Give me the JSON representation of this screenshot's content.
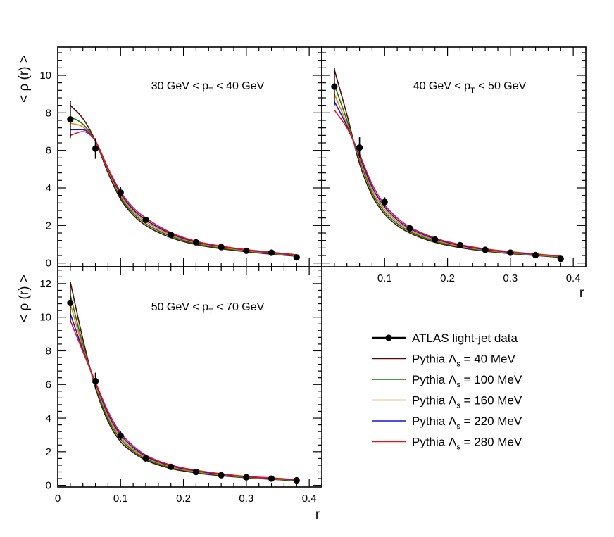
{
  "chart_data": [
    {
      "type": "line",
      "panel": "top-left",
      "title_parts": [
        "30 GeV < p",
        "T",
        " < 40 GeV"
      ],
      "ylabel": "< ρ (r) >",
      "xlabel": "",
      "xlim": [
        0,
        0.42
      ],
      "ylim": [
        -0.2,
        11.5
      ],
      "xticks": [],
      "yticks": [
        0,
        2,
        4,
        6,
        8,
        10
      ],
      "data": {
        "name": "ATLAS light-jet data",
        "x": [
          0.02,
          0.06,
          0.1,
          0.14,
          0.18,
          0.22,
          0.26,
          0.3,
          0.34,
          0.38
        ],
        "y": [
          7.65,
          6.1,
          3.75,
          2.3,
          1.5,
          1.1,
          0.85,
          0.65,
          0.55,
          0.3
        ],
        "err": [
          1.0,
          0.55,
          0.3,
          0.15,
          0.1,
          0.08,
          0.06,
          0.05,
          0.04,
          0.03
        ]
      },
      "series": [
        {
          "name": "Pythia Λs = 40 MeV",
          "x": [
            0.02,
            0.04,
            0.06,
            0.08,
            0.1,
            0.12,
            0.14,
            0.18,
            0.22,
            0.26,
            0.3,
            0.34,
            0.38
          ],
          "values": [
            8.4,
            7.7,
            6.5,
            4.8,
            3.4,
            2.55,
            2.0,
            1.35,
            0.98,
            0.76,
            0.6,
            0.47,
            0.36
          ]
        },
        {
          "name": "Pythia Λs = 100 MeV",
          "x": [
            0.02,
            0.04,
            0.06,
            0.08,
            0.1,
            0.12,
            0.14,
            0.18,
            0.22,
            0.26,
            0.3,
            0.34,
            0.38
          ],
          "values": [
            7.8,
            7.4,
            6.5,
            4.9,
            3.5,
            2.65,
            2.1,
            1.43,
            1.03,
            0.8,
            0.63,
            0.5,
            0.38
          ]
        },
        {
          "name": "Pythia Λs = 160 MeV",
          "x": [
            0.02,
            0.04,
            0.06,
            0.08,
            0.1,
            0.12,
            0.14,
            0.18,
            0.22,
            0.26,
            0.3,
            0.34,
            0.38
          ],
          "values": [
            7.45,
            7.25,
            6.5,
            4.95,
            3.6,
            2.75,
            2.2,
            1.5,
            1.08,
            0.84,
            0.66,
            0.52,
            0.4
          ]
        },
        {
          "name": "Pythia Λs = 220 MeV",
          "x": [
            0.02,
            0.04,
            0.06,
            0.08,
            0.1,
            0.12,
            0.14,
            0.18,
            0.22,
            0.26,
            0.3,
            0.34,
            0.38
          ],
          "values": [
            7.1,
            7.1,
            6.5,
            5.0,
            3.7,
            2.85,
            2.3,
            1.56,
            1.12,
            0.88,
            0.69,
            0.55,
            0.42
          ]
        },
        {
          "name": "Pythia Λs = 280 MeV",
          "x": [
            0.02,
            0.04,
            0.06,
            0.08,
            0.1,
            0.12,
            0.14,
            0.18,
            0.22,
            0.26,
            0.3,
            0.34,
            0.38
          ],
          "values": [
            6.8,
            7.0,
            6.5,
            5.05,
            3.8,
            2.95,
            2.4,
            1.62,
            1.16,
            0.9,
            0.71,
            0.57,
            0.44
          ]
        }
      ]
    },
    {
      "type": "line",
      "panel": "top-right",
      "title_parts": [
        "40 GeV < p",
        "T",
        " < 50 GeV"
      ],
      "ylabel": "",
      "xlabel": "r",
      "xlim": [
        0,
        0.42
      ],
      "ylim": [
        -0.2,
        11.5
      ],
      "xticks": [
        0.1,
        0.2,
        0.3,
        0.4
      ],
      "yticks": [],
      "data": {
        "name": "ATLAS light-jet data",
        "x": [
          0.02,
          0.06,
          0.1,
          0.14,
          0.18,
          0.22,
          0.26,
          0.3,
          0.34,
          0.38
        ],
        "y": [
          9.4,
          6.15,
          3.25,
          1.85,
          1.25,
          0.95,
          0.7,
          0.55,
          0.42,
          0.22
        ],
        "err": [
          1.0,
          0.55,
          0.25,
          0.12,
          0.08,
          0.06,
          0.05,
          0.04,
          0.03,
          0.03
        ]
      },
      "series": [
        {
          "name": "Pythia Λs = 40 MeV",
          "x": [
            0.02,
            0.04,
            0.06,
            0.08,
            0.1,
            0.12,
            0.14,
            0.18,
            0.22,
            0.26,
            0.3,
            0.34,
            0.38
          ],
          "values": [
            10.3,
            7.9,
            5.3,
            3.6,
            2.6,
            2.0,
            1.6,
            1.1,
            0.82,
            0.63,
            0.5,
            0.4,
            0.3
          ]
        },
        {
          "name": "Pythia Λs = 100 MeV",
          "x": [
            0.02,
            0.04,
            0.06,
            0.08,
            0.1,
            0.12,
            0.14,
            0.18,
            0.22,
            0.26,
            0.3,
            0.34,
            0.38
          ],
          "values": [
            9.5,
            7.6,
            5.5,
            3.75,
            2.72,
            2.1,
            1.68,
            1.16,
            0.86,
            0.66,
            0.52,
            0.42,
            0.32
          ]
        },
        {
          "name": "Pythia Λs = 160 MeV",
          "x": [
            0.02,
            0.04,
            0.06,
            0.08,
            0.1,
            0.12,
            0.14,
            0.18,
            0.22,
            0.26,
            0.3,
            0.34,
            0.38
          ],
          "values": [
            9.0,
            7.4,
            5.6,
            3.9,
            2.85,
            2.2,
            1.76,
            1.22,
            0.9,
            0.69,
            0.55,
            0.44,
            0.34
          ]
        },
        {
          "name": "Pythia Λs = 220 MeV",
          "x": [
            0.02,
            0.04,
            0.06,
            0.08,
            0.1,
            0.12,
            0.14,
            0.18,
            0.22,
            0.26,
            0.3,
            0.34,
            0.38
          ],
          "values": [
            8.6,
            7.3,
            5.7,
            4.05,
            2.98,
            2.3,
            1.84,
            1.28,
            0.94,
            0.72,
            0.57,
            0.46,
            0.36
          ]
        },
        {
          "name": "Pythia Λs = 280 MeV",
          "x": [
            0.02,
            0.04,
            0.06,
            0.08,
            0.1,
            0.12,
            0.14,
            0.18,
            0.22,
            0.26,
            0.3,
            0.34,
            0.38
          ],
          "values": [
            8.15,
            7.2,
            5.8,
            4.2,
            3.1,
            2.4,
            1.92,
            1.33,
            0.98,
            0.75,
            0.6,
            0.48,
            0.37
          ]
        }
      ]
    },
    {
      "type": "line",
      "panel": "bottom-left",
      "title_parts": [
        "50 GeV < p",
        "T",
        " < 70 GeV"
      ],
      "ylabel": "< ρ (r) >",
      "xlabel": "r",
      "xlim": [
        0,
        0.42
      ],
      "ylim": [
        -0.1,
        13.0
      ],
      "xticks": [
        0,
        0.1,
        0.2,
        0.3,
        0.4
      ],
      "yticks": [
        0,
        2,
        4,
        6,
        8,
        10,
        12
      ],
      "data": {
        "name": "ATLAS light-jet data",
        "x": [
          0.02,
          0.06,
          0.1,
          0.14,
          0.18,
          0.22,
          0.26,
          0.3,
          0.34,
          0.38
        ],
        "y": [
          10.85,
          6.2,
          2.95,
          1.6,
          1.1,
          0.8,
          0.6,
          0.48,
          0.4,
          0.3
        ],
        "err": [
          1.1,
          0.5,
          0.25,
          0.12,
          0.08,
          0.06,
          0.05,
          0.04,
          0.03,
          0.03
        ]
      },
      "series": [
        {
          "name": "Pythia Λs = 40 MeV",
          "x": [
            0.02,
            0.04,
            0.06,
            0.08,
            0.1,
            0.12,
            0.14,
            0.18,
            0.22,
            0.26,
            0.3,
            0.34,
            0.38
          ],
          "values": [
            12.1,
            8.7,
            5.8,
            3.8,
            2.6,
            1.95,
            1.5,
            1.0,
            0.74,
            0.57,
            0.45,
            0.36,
            0.27
          ]
        },
        {
          "name": "Pythia Λs = 100 MeV",
          "x": [
            0.02,
            0.04,
            0.06,
            0.08,
            0.1,
            0.12,
            0.14,
            0.18,
            0.22,
            0.26,
            0.3,
            0.34,
            0.38
          ],
          "values": [
            11.3,
            8.4,
            5.9,
            3.95,
            2.75,
            2.05,
            1.58,
            1.06,
            0.78,
            0.6,
            0.47,
            0.38,
            0.29
          ]
        },
        {
          "name": "Pythia Λs = 160 MeV",
          "x": [
            0.02,
            0.04,
            0.06,
            0.08,
            0.1,
            0.12,
            0.14,
            0.18,
            0.22,
            0.26,
            0.3,
            0.34,
            0.38
          ],
          "values": [
            10.8,
            8.2,
            6.0,
            4.1,
            2.88,
            2.15,
            1.66,
            1.11,
            0.82,
            0.63,
            0.49,
            0.4,
            0.31
          ]
        },
        {
          "name": "Pythia Λs = 220 MeV",
          "x": [
            0.02,
            0.04,
            0.06,
            0.08,
            0.1,
            0.12,
            0.14,
            0.18,
            0.22,
            0.26,
            0.3,
            0.34,
            0.38
          ],
          "values": [
            10.2,
            8.05,
            6.1,
            4.25,
            3.0,
            2.25,
            1.73,
            1.16,
            0.86,
            0.66,
            0.51,
            0.42,
            0.32
          ]
        },
        {
          "name": "Pythia Λs = 280 MeV",
          "x": [
            0.02,
            0.04,
            0.06,
            0.08,
            0.1,
            0.12,
            0.14,
            0.18,
            0.22,
            0.26,
            0.3,
            0.34,
            0.38
          ],
          "values": [
            9.8,
            7.95,
            6.15,
            4.4,
            3.12,
            2.35,
            1.8,
            1.21,
            0.9,
            0.69,
            0.53,
            0.44,
            0.34
          ]
        }
      ]
    }
  ],
  "legend": {
    "placement": "bottom-right",
    "entries": [
      {
        "label": "ATLAS light-jet data",
        "kind": "data",
        "color": "#000000"
      },
      {
        "prefix": "Pythia Λ",
        "sub": "s",
        "suffix": " = 40 MeV",
        "kind": "line",
        "color": "#5a0a0a"
      },
      {
        "prefix": "Pythia Λ",
        "sub": "s",
        "suffix": " = 100 MeV",
        "kind": "line",
        "color": "#0c7a0c"
      },
      {
        "prefix": "Pythia Λ",
        "sub": "s",
        "suffix": " = 160 MeV",
        "kind": "line",
        "color": "#f08010"
      },
      {
        "prefix": "Pythia Λ",
        "sub": "s",
        "suffix": " = 220 MeV",
        "kind": "line",
        "color": "#1414dc"
      },
      {
        "prefix": "Pythia Λ",
        "sub": "s",
        "suffix": " = 280 MeV",
        "kind": "line",
        "color": "#e8141e"
      }
    ]
  },
  "colors": {
    "data": "#000000",
    "series": [
      "#5a0a0a",
      "#0c7a0c",
      "#f08010",
      "#1414dc",
      "#e8141e"
    ]
  }
}
